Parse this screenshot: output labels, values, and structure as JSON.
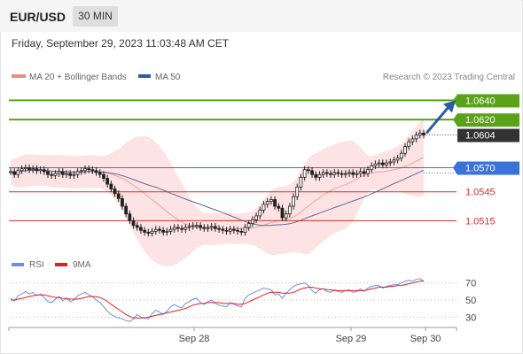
{
  "header": {
    "symbol": "EUR/USD",
    "timeframe": "30 MIN"
  },
  "timestamp": "Friday, September 29, 2023 11:03:48 AM CET",
  "legend": {
    "bollinger": "MA 20 + Bollinger Bands",
    "ma50": "MA 50",
    "copyright": "Research © 2023 Trading Central"
  },
  "rsi_legend": {
    "rsi": "RSI",
    "ma9": "9MA"
  },
  "colors": {
    "resistance": "#5aa319",
    "support": "#d32f2f",
    "pivot": "#3a72d9",
    "current": "#333333",
    "arrow": "#2b5ca8",
    "candle": "#222222",
    "bollinger_fill": "#fde3e3",
    "bollinger_line": "#f0a0a0",
    "ma50": "#5a6d9a",
    "rsi": "#6b8ee8",
    "rsi_ma": "#e02020"
  },
  "chart_data": {
    "type": "candlestick",
    "title": "EUR/USD",
    "timeframe": "30 MIN",
    "ylim": [
      1.0485,
      1.0656
    ],
    "levels": [
      {
        "value": 1.064,
        "label": "1.0640",
        "kind": "resistance"
      },
      {
        "value": 1.062,
        "label": "1.0620",
        "kind": "resistance"
      },
      {
        "value": 1.0604,
        "label": "1.0604",
        "kind": "current"
      },
      {
        "value": 1.057,
        "label": "1.0570",
        "kind": "pivot"
      },
      {
        "value": 1.0545,
        "label": "1.0545",
        "kind": "support"
      },
      {
        "value": 1.0515,
        "label": "1.0515",
        "kind": "support"
      }
    ],
    "close": [
      1.0566,
      1.0563,
      1.0567,
      1.0569,
      1.057,
      1.0568,
      1.0569,
      1.0567,
      1.0568,
      1.0566,
      1.0563,
      1.0562,
      1.0564,
      1.0566,
      1.0563,
      1.0564,
      1.0562,
      1.0563,
      1.0566,
      1.0567,
      1.0569,
      1.0568,
      1.0567,
      1.0565,
      1.0563,
      1.0559,
      1.0553,
      1.0548,
      1.0543,
      1.0538,
      1.053,
      1.0522,
      1.0515,
      1.051,
      1.0508,
      1.0505,
      1.0503,
      1.0502,
      1.0504,
      1.0506,
      1.0505,
      1.0503,
      1.0504,
      1.0506,
      1.0508,
      1.0507,
      1.0506,
      1.0508,
      1.0509,
      1.051,
      1.051,
      1.0508,
      1.0507,
      1.0508,
      1.0509,
      1.0507,
      1.0506,
      1.0505,
      1.0504,
      1.0506,
      1.0505,
      1.0504,
      1.0503,
      1.0508,
      1.0512,
      1.0516,
      1.052,
      1.0526,
      1.0532,
      1.0535,
      1.0537,
      1.053,
      1.0528,
      1.0518,
      1.0522,
      1.053,
      1.054,
      1.055,
      1.056,
      1.0568,
      1.0567,
      1.0563,
      1.056,
      1.0563,
      1.0565,
      1.0564,
      1.0563,
      1.0565,
      1.0564,
      1.0563,
      1.0564,
      1.0565,
      1.0563,
      1.0564,
      1.0566,
      1.0564,
      1.0568,
      1.0572,
      1.0574,
      1.0575,
      1.0573,
      1.0575,
      1.0576,
      1.0578,
      1.058,
      1.0585,
      1.0592,
      1.0597,
      1.06,
      1.0604,
      1.0606,
      1.0604
    ],
    "x_ticks": [
      "Sep 28",
      "Sep 29",
      "Sep 30"
    ],
    "rsi": {
      "levels": [
        70,
        50,
        30
      ],
      "ylim": [
        20,
        80
      ],
      "rsi_values": [
        52,
        49,
        55,
        57,
        60,
        57,
        59,
        55,
        57,
        53,
        48,
        47,
        51,
        54,
        49,
        52,
        48,
        50,
        55,
        57,
        59,
        56,
        54,
        50,
        47,
        42,
        37,
        33,
        31,
        29,
        28,
        26,
        25,
        28,
        33,
        30,
        29,
        28,
        34,
        38,
        36,
        33,
        37,
        42,
        45,
        42,
        41,
        46,
        48,
        51,
        52,
        47,
        45,
        48,
        50,
        46,
        44,
        43,
        42,
        47,
        45,
        43,
        42,
        52,
        56,
        58,
        60,
        62,
        64,
        63,
        62,
        56,
        57,
        52,
        58,
        62,
        66,
        68,
        69,
        70,
        67,
        61,
        58,
        62,
        63,
        60,
        59,
        62,
        60,
        59,
        61,
        62,
        59,
        60,
        63,
        60,
        64,
        66,
        67,
        67,
        64,
        66,
        67,
        68,
        68,
        70,
        72,
        73,
        72,
        74,
        75,
        72
      ],
      "ma_values": [
        50,
        50,
        51,
        52,
        53,
        54,
        55,
        56,
        56,
        56,
        55,
        54,
        53,
        53,
        52,
        52,
        51,
        51,
        51,
        52,
        53,
        54,
        54,
        54,
        53,
        51,
        48,
        45,
        42,
        39,
        36,
        33,
        31,
        29,
        29,
        29,
        29,
        30,
        31,
        32,
        33,
        34,
        35,
        36,
        37,
        38,
        39,
        40,
        42,
        44,
        45,
        46,
        46,
        47,
        47,
        47,
        47,
        46,
        46,
        46,
        46,
        45,
        45,
        46,
        48,
        50,
        52,
        54,
        56,
        58,
        59,
        59,
        59,
        58,
        58,
        58,
        59,
        61,
        63,
        64,
        65,
        65,
        64,
        63,
        63,
        62,
        62,
        61,
        61,
        61,
        61,
        61,
        61,
        61,
        61,
        61,
        62,
        63,
        64,
        65,
        65,
        65,
        66,
        66,
        67,
        67,
        68,
        69,
        70,
        71,
        72,
        72
      ]
    }
  }
}
